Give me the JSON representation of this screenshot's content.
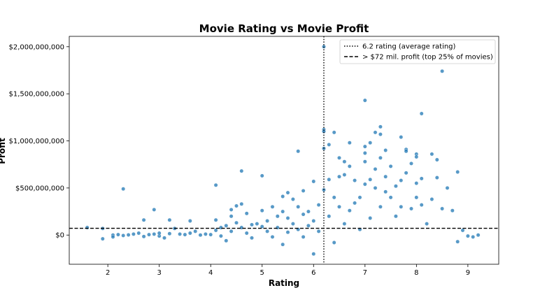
{
  "chart_data": {
    "type": "scatter",
    "title": "Movie Rating vs Movie Profit",
    "xlabel": "Rating",
    "ylabel": "Profit",
    "xlim": [
      1.25,
      9.6
    ],
    "ylim": [
      -310000000,
      2110000000
    ],
    "x_ticks": [
      2,
      3,
      4,
      5,
      6,
      7,
      8,
      9
    ],
    "x_tick_labels": [
      "2",
      "3",
      "4",
      "5",
      "6",
      "7",
      "8",
      "9"
    ],
    "y_ticks": [
      0,
      500000000,
      1000000000,
      1500000000,
      2000000000
    ],
    "y_tick_labels": [
      "$0",
      "$500,000,000",
      "$1,000,000,000",
      "$1,500,000,000",
      "$2,000,000,000"
    ],
    "grid": false,
    "legend_position": "top-right",
    "point_color": "#1f77b4",
    "reference_lines": [
      {
        "orientation": "vertical",
        "value": 6.2,
        "style": "dotted",
        "label": "6.2 rating (average rating)"
      },
      {
        "orientation": "horizontal",
        "value": 72000000,
        "style": "dashed",
        "label": "> $72 mil. profit (top 25% of movies)"
      }
    ],
    "series": [
      {
        "points": [
          [
            1.6,
            80000000
          ],
          [
            1.9,
            70000000
          ],
          [
            1.9,
            -40000000
          ],
          [
            2.1,
            0
          ],
          [
            2.1,
            -20000000
          ],
          [
            2.2,
            5000000
          ],
          [
            2.3,
            490000000
          ],
          [
            2.3,
            -5000000
          ],
          [
            2.4,
            2000000
          ],
          [
            2.5,
            10000000
          ],
          [
            2.6,
            20000000
          ],
          [
            2.7,
            160000000
          ],
          [
            2.7,
            -15000000
          ],
          [
            2.8,
            5000000
          ],
          [
            2.9,
            270000000
          ],
          [
            2.9,
            10000000
          ],
          [
            3.0,
            -10000000
          ],
          [
            3.0,
            20000000
          ],
          [
            3.1,
            -30000000
          ],
          [
            3.2,
            160000000
          ],
          [
            3.2,
            15000000
          ],
          [
            3.3,
            70000000
          ],
          [
            3.4,
            10000000
          ],
          [
            3.5,
            5000000
          ],
          [
            3.6,
            150000000
          ],
          [
            3.6,
            20000000
          ],
          [
            3.7,
            40000000
          ],
          [
            3.8,
            0
          ],
          [
            3.9,
            10000000
          ],
          [
            4.0,
            5000000
          ],
          [
            4.1,
            530000000
          ],
          [
            4.1,
            160000000
          ],
          [
            4.1,
            50000000
          ],
          [
            4.2,
            80000000
          ],
          [
            4.2,
            -10000000
          ],
          [
            4.3,
            100000000
          ],
          [
            4.3,
            -60000000
          ],
          [
            4.4,
            270000000
          ],
          [
            4.4,
            200000000
          ],
          [
            4.4,
            40000000
          ],
          [
            4.5,
            310000000
          ],
          [
            4.5,
            130000000
          ],
          [
            4.6,
            680000000
          ],
          [
            4.6,
            330000000
          ],
          [
            4.6,
            80000000
          ],
          [
            4.7,
            230000000
          ],
          [
            4.7,
            20000000
          ],
          [
            4.8,
            110000000
          ],
          [
            4.8,
            -30000000
          ],
          [
            4.9,
            120000000
          ],
          [
            5.0,
            630000000
          ],
          [
            5.0,
            260000000
          ],
          [
            5.0,
            90000000
          ],
          [
            5.1,
            150000000
          ],
          [
            5.1,
            40000000
          ],
          [
            5.2,
            300000000
          ],
          [
            5.2,
            -20000000
          ],
          [
            5.3,
            200000000
          ],
          [
            5.3,
            80000000
          ],
          [
            5.4,
            410000000
          ],
          [
            5.4,
            250000000
          ],
          [
            5.4,
            -100000000
          ],
          [
            5.5,
            450000000
          ],
          [
            5.5,
            180000000
          ],
          [
            5.5,
            30000000
          ],
          [
            5.6,
            380000000
          ],
          [
            5.6,
            120000000
          ],
          [
            5.7,
            890000000
          ],
          [
            5.7,
            300000000
          ],
          [
            5.7,
            60000000
          ],
          [
            5.8,
            470000000
          ],
          [
            5.8,
            220000000
          ],
          [
            5.8,
            -20000000
          ],
          [
            5.9,
            250000000
          ],
          [
            5.9,
            100000000
          ],
          [
            6.0,
            570000000
          ],
          [
            6.0,
            150000000
          ],
          [
            6.0,
            -200000000
          ],
          [
            6.1,
            320000000
          ],
          [
            6.1,
            40000000
          ],
          [
            6.2,
            2000000000
          ],
          [
            6.2,
            1120000000
          ],
          [
            6.2,
            1100000000
          ],
          [
            6.2,
            920000000
          ],
          [
            6.2,
            480000000
          ],
          [
            6.3,
            960000000
          ],
          [
            6.3,
            590000000
          ],
          [
            6.3,
            200000000
          ],
          [
            6.4,
            1090000000
          ],
          [
            6.4,
            400000000
          ],
          [
            6.4,
            -80000000
          ],
          [
            6.5,
            820000000
          ],
          [
            6.5,
            620000000
          ],
          [
            6.5,
            300000000
          ],
          [
            6.6,
            780000000
          ],
          [
            6.6,
            640000000
          ],
          [
            6.6,
            120000000
          ],
          [
            6.7,
            980000000
          ],
          [
            6.7,
            730000000
          ],
          [
            6.7,
            260000000
          ],
          [
            6.8,
            580000000
          ],
          [
            6.8,
            340000000
          ],
          [
            6.9,
            400000000
          ],
          [
            6.9,
            60000000
          ],
          [
            7.0,
            1430000000
          ],
          [
            7.0,
            940000000
          ],
          [
            7.0,
            870000000
          ],
          [
            7.0,
            780000000
          ],
          [
            7.0,
            540000000
          ],
          [
            7.1,
            980000000
          ],
          [
            7.1,
            590000000
          ],
          [
            7.1,
            180000000
          ],
          [
            7.2,
            1090000000
          ],
          [
            7.2,
            700000000
          ],
          [
            7.2,
            500000000
          ],
          [
            7.3,
            1150000000
          ],
          [
            7.3,
            1070000000
          ],
          [
            7.3,
            820000000
          ],
          [
            7.3,
            300000000
          ],
          [
            7.4,
            900000000
          ],
          [
            7.4,
            620000000
          ],
          [
            7.4,
            460000000
          ],
          [
            7.5,
            730000000
          ],
          [
            7.5,
            400000000
          ],
          [
            7.6,
            520000000
          ],
          [
            7.6,
            200000000
          ],
          [
            7.7,
            1040000000
          ],
          [
            7.7,
            580000000
          ],
          [
            7.7,
            300000000
          ],
          [
            7.8,
            910000000
          ],
          [
            7.8,
            890000000
          ],
          [
            7.8,
            660000000
          ],
          [
            7.9,
            760000000
          ],
          [
            7.9,
            280000000
          ],
          [
            8.0,
            860000000
          ],
          [
            8.0,
            830000000
          ],
          [
            8.0,
            550000000
          ],
          [
            8.0,
            400000000
          ],
          [
            8.1,
            1290000000
          ],
          [
            8.1,
            600000000
          ],
          [
            8.1,
            320000000
          ],
          [
            8.2,
            120000000
          ],
          [
            8.3,
            860000000
          ],
          [
            8.3,
            380000000
          ],
          [
            8.4,
            800000000
          ],
          [
            8.4,
            610000000
          ],
          [
            8.5,
            1740000000
          ],
          [
            8.5,
            280000000
          ],
          [
            8.6,
            500000000
          ],
          [
            8.7,
            260000000
          ],
          [
            8.8,
            670000000
          ],
          [
            8.8,
            -70000000
          ],
          [
            8.9,
            50000000
          ],
          [
            9.0,
            -10000000
          ],
          [
            9.1,
            -20000000
          ],
          [
            9.2,
            0
          ]
        ]
      }
    ]
  }
}
